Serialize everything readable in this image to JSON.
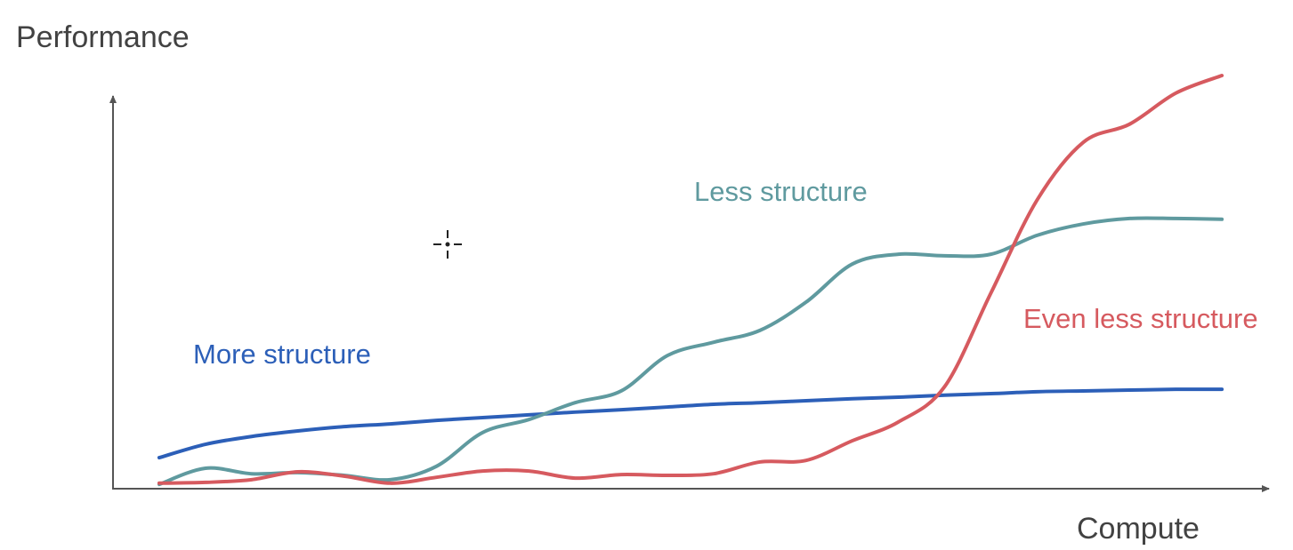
{
  "chart_data": {
    "type": "line",
    "y_label": "Performance",
    "x_label": "Compute",
    "xlim": [
      0,
      100
    ],
    "ylim": [
      0,
      110
    ],
    "x": [
      0,
      4,
      8,
      12,
      16,
      20,
      24,
      28,
      32,
      36,
      40,
      44,
      48,
      52,
      56,
      60,
      64,
      68,
      72,
      76,
      80,
      84,
      88,
      92,
      96,
      100
    ],
    "series": [
      {
        "name": "More structure",
        "color": "#2c5fb8",
        "values": [
          null,
          7.9,
          11.3,
          13.3,
          14.7,
          15.8,
          16.5,
          17.4,
          18.1,
          18.8,
          19.5,
          20.1,
          20.8,
          21.5,
          21.9,
          22.4,
          22.9,
          23.3,
          23.8,
          24.2,
          24.7,
          24.9,
          25.1,
          25.3,
          25.3,
          null
        ]
      },
      {
        "name": "Less structure",
        "color": "#5f9a9f",
        "values": [
          null,
          1.1,
          5.2,
          3.8,
          4.1,
          3.4,
          2.3,
          5.7,
          14.3,
          17.6,
          21.9,
          24.9,
          33.9,
          37.3,
          40.3,
          47.5,
          57.2,
          59.7,
          59.3,
          59.7,
          64.5,
          67.4,
          68.8,
          68.8,
          68.6,
          null
        ]
      },
      {
        "name": "Even less structure",
        "color": "#d65a5f",
        "values": [
          null,
          1.4,
          1.6,
          2.3,
          4.3,
          3.2,
          1.4,
          2.9,
          4.5,
          4.5,
          2.7,
          3.6,
          3.4,
          3.8,
          6.8,
          7.2,
          12.2,
          17.0,
          26.0,
          49.8,
          73.5,
          88.2,
          92.8,
          100.7,
          105.2,
          null
        ]
      }
    ]
  }
}
